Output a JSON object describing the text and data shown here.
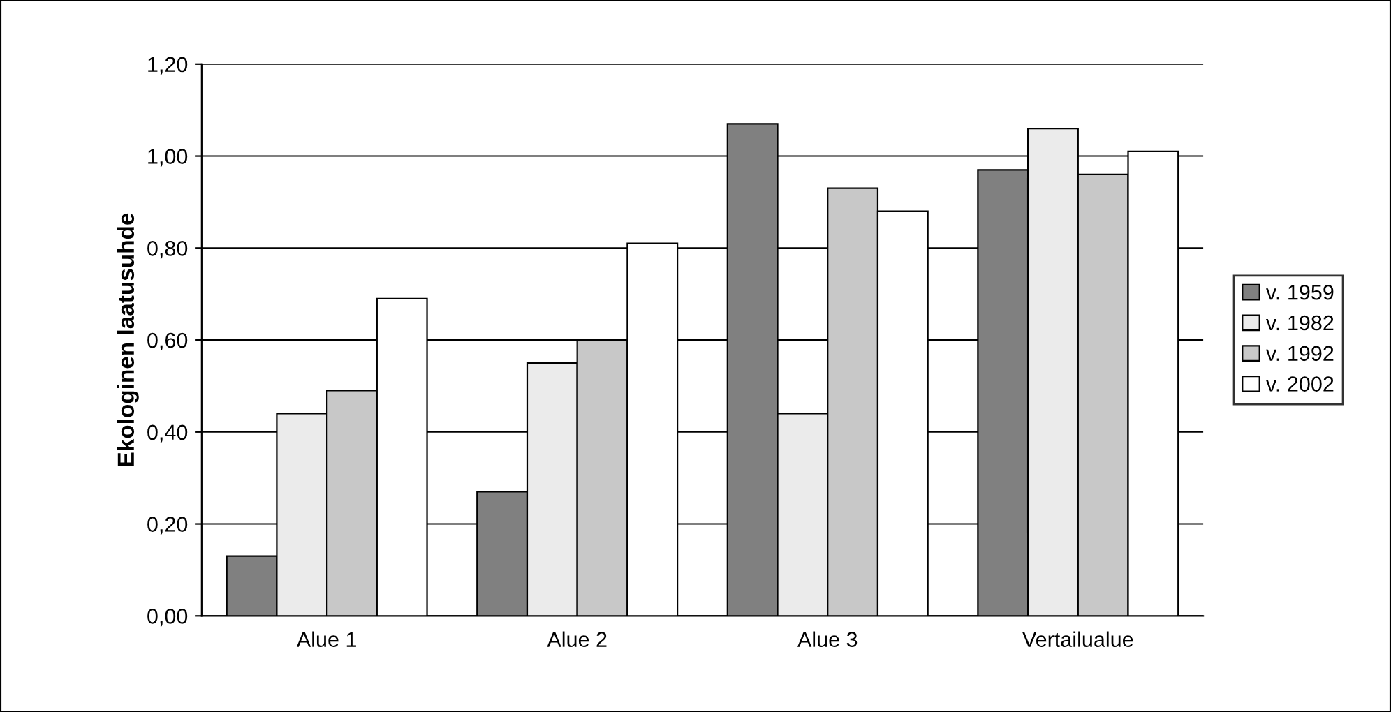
{
  "chart_data": {
    "type": "bar",
    "ylabel": "Ekologinen laatusuhde",
    "categories": [
      "Alue 1",
      "Alue 2",
      "Alue 3",
      "Vertailualue"
    ],
    "series": [
      {
        "name": "v. 1959",
        "color": "#808080",
        "values": [
          0.13,
          0.27,
          1.07,
          0.97
        ]
      },
      {
        "name": "v. 1982",
        "color": "#ebebeb",
        "values": [
          0.44,
          0.55,
          0.44,
          1.06
        ]
      },
      {
        "name": "v. 1992",
        "color": "#c8c8c8",
        "values": [
          0.49,
          0.6,
          0.93,
          0.96
        ]
      },
      {
        "name": "v. 2002",
        "color": "#ffffff",
        "values": [
          0.69,
          0.81,
          0.88,
          1.01
        ]
      }
    ],
    "ylim": [
      0,
      1.2
    ],
    "yticks": [
      {
        "value": 0,
        "label": "0,00"
      },
      {
        "value": 0.2,
        "label": "0,20"
      },
      {
        "value": 0.4,
        "label": "0,40"
      },
      {
        "value": 0.6,
        "label": "0,60"
      },
      {
        "value": 0.8,
        "label": "0,80"
      },
      {
        "value": 1.0,
        "label": "1,00"
      },
      {
        "value": 1.2,
        "label": "1,20"
      }
    ],
    "grid": "y",
    "legend": "right"
  }
}
